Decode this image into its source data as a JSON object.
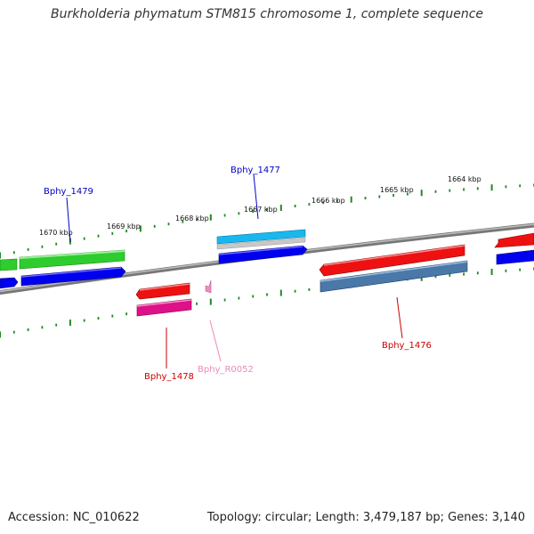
{
  "title": "Burkholderia phymatum STM815 chromosome 1, complete sequence",
  "accession": "Accession: NC_010622",
  "topology": "Topology: circular; Length: 3,479,187 bp; Genes: 3,140",
  "kbp_labels": [
    "1670 kbp",
    "1669 kbp",
    "1668 kbp",
    "1667 kbp",
    "1666 kbp",
    "1665 kbp",
    "1664 kbp"
  ],
  "genes": {
    "bphy_1479": {
      "label": "Bphy_1479",
      "color": "#0000cc"
    },
    "bphy_1477": {
      "label": "Bphy_1477",
      "color": "#0000cc"
    },
    "bphy_1478": {
      "label": "Bphy_1478",
      "color": "#cc0000"
    },
    "bphy_r0052": {
      "label": "Bphy_R0052",
      "color": "#ee88bb"
    },
    "bphy_1476": {
      "label": "Bphy_1476",
      "color": "#cc0000"
    }
  },
  "colors": {
    "backbone": "#888888",
    "tick": "#228822",
    "forward_gene": "#2ecc2e",
    "forward_cds": "#0000ee",
    "reverse_gene": "#ee1111",
    "reverse_cds": "#dd1188",
    "rna": "#f08cc0",
    "cyan_gene": "#18b8ee",
    "steel_gene": "#4a78a8"
  }
}
